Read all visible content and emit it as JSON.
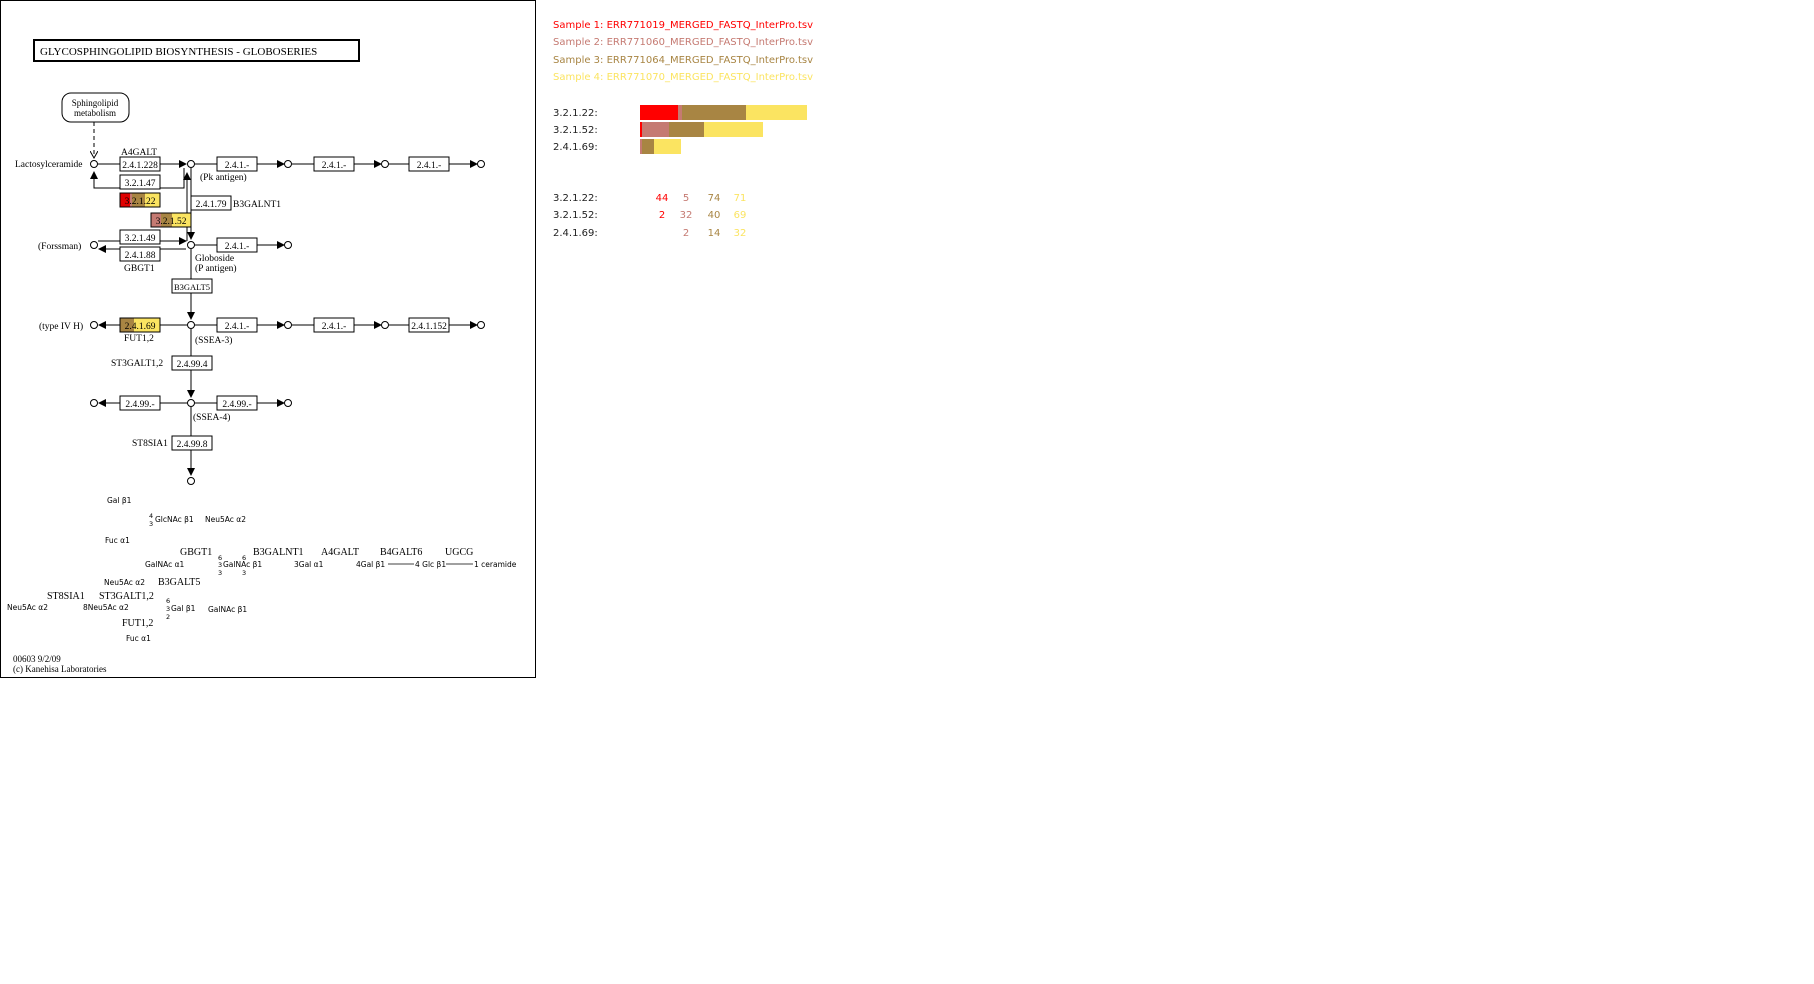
{
  "map": {
    "title": "GLYCOSPHINGOLIPID  BIOSYNTHESIS - GLOBOSERIES",
    "footer_id": "00603 9/2/09",
    "footer_copyright": "(c) Kanehisa Laboratories",
    "nodes": {
      "sphingolipid_1": "Sphingolipid",
      "sphingolipid_2": "metabolism",
      "lactosylceramide": "Lactosylceramide",
      "pk_antigen": "(Pk antigen)",
      "forssman": "(Forssman)",
      "globoside_1": "Globoside",
      "globoside_2": "(P antigen)",
      "type_iv_h": "(type IV H)",
      "ssea3": "(SSEA-3)",
      "ssea4": "(SSEA-4)"
    },
    "genes": {
      "a4galt": "A4GALT",
      "b3galnt1": "B3GALNT1",
      "gbgt1": "GBGT1",
      "b3galt5": "B3GALT5",
      "fut12": "FUT1,2",
      "st3galt12": "ST3GALT1,2",
      "st8sia1": "ST8SIA1"
    },
    "enzymes": {
      "e_24128": "2.4.1.228",
      "e_32147": "3.2.1.47",
      "e_32122": "3.2.1.22",
      "e_32152": "3.2.1.52",
      "e_24179": "2.4.1.79",
      "e_241a": "2.4.1.-",
      "e_241b": "2.4.1.-",
      "e_241c": "2.4.1.-",
      "e_32149": "3.2.1.49",
      "e_24188": "2.4.1.88",
      "e_241d": "2.4.1.-",
      "e_24169": "2.4.1.69",
      "e_241e": "2.4.1.-",
      "e_241f": "2.4.1.-",
      "e_241152": "2.4.1.152",
      "e_24994": "2.4.99.4",
      "e_2499a": "2.4.99.-",
      "e_2499b": "2.4.99.-",
      "e_24998": "2.4.99.8"
    },
    "b3galt5_box": "B3GALT5",
    "glycan": {
      "gal_b1": "Gal β1",
      "glcnac_b1": "GlcNAc β1",
      "glcnac_4": "4",
      "glcnac_3": "3",
      "neu5ac_a2_top": "Neu5Ac α2",
      "fuc_a1_top": "Fuc α1",
      "gbgt1": "GBGT1",
      "b3galnt1": "B3GALNT1",
      "a4galt": "A4GALT",
      "b4galt6": "B4GALT6",
      "ugcg": "UGCG",
      "galnac_a1": "GalNAc α1",
      "galnac_b1_mid": "GalNAc β1",
      "gal_a1": "3Gal α1",
      "gal_b1_4": "4Gal β1",
      "glc_b1": "4 Glc β1",
      "ceramide": "1 ceramide",
      "n6a": "6",
      "n3a": "3",
      "n6b": "6",
      "n3b": "3",
      "n3c": "3",
      "n3d": "3",
      "neu5ac_a2_mid": "Neu5Ac α2",
      "b3galt5": "B3GALT5",
      "st8sia1": "ST8SIA1",
      "st3galt12": "ST3GALT1,2",
      "neu5ac_a2_left": "Neu5Ac α2",
      "neu5ac_8": "8Neu5Ac α2",
      "gal_b1_bottom": "Gal β1",
      "n6c": "6",
      "n3e": "3",
      "n2": "2",
      "galnac_b1_bottom": "GalNAc β1",
      "fut12": "FUT1,2",
      "fuc_a1_bottom": "Fuc  α1"
    }
  },
  "legend": {
    "samples": [
      {
        "label": "Sample 1: ERR771019_MERGED_FASTQ_InterPro.tsv",
        "color": "#ff0000"
      },
      {
        "label": "Sample 2: ERR771060_MERGED_FASTQ_InterPro.tsv",
        "color": "#c57a72"
      },
      {
        "label": "Sample 3: ERR771064_MERGED_FASTQ_InterPro.tsv",
        "color": "#a88543"
      },
      {
        "label": "Sample 4: ERR771070_MERGED_FASTQ_InterPro.tsv",
        "color": "#fbe461"
      }
    ]
  },
  "ec_bars": [
    {
      "ec": "3.2.1.22:",
      "counts": [
        44,
        5,
        74,
        71
      ]
    },
    {
      "ec": "3.2.1.52:",
      "counts": [
        2,
        32,
        40,
        69
      ]
    },
    {
      "ec": "2.4.1.69:",
      "counts": [
        0,
        2,
        14,
        32
      ]
    }
  ],
  "ec_counts": [
    {
      "ec": "3.2.1.22:",
      "values": [
        "44",
        "5",
        "74",
        "71"
      ]
    },
    {
      "ec": "3.2.1.52:",
      "values": [
        "2",
        "32",
        "40",
        "69"
      ]
    },
    {
      "ec": "2.4.1.69:",
      "values": [
        "",
        "2",
        "14",
        "32"
      ]
    }
  ]
}
